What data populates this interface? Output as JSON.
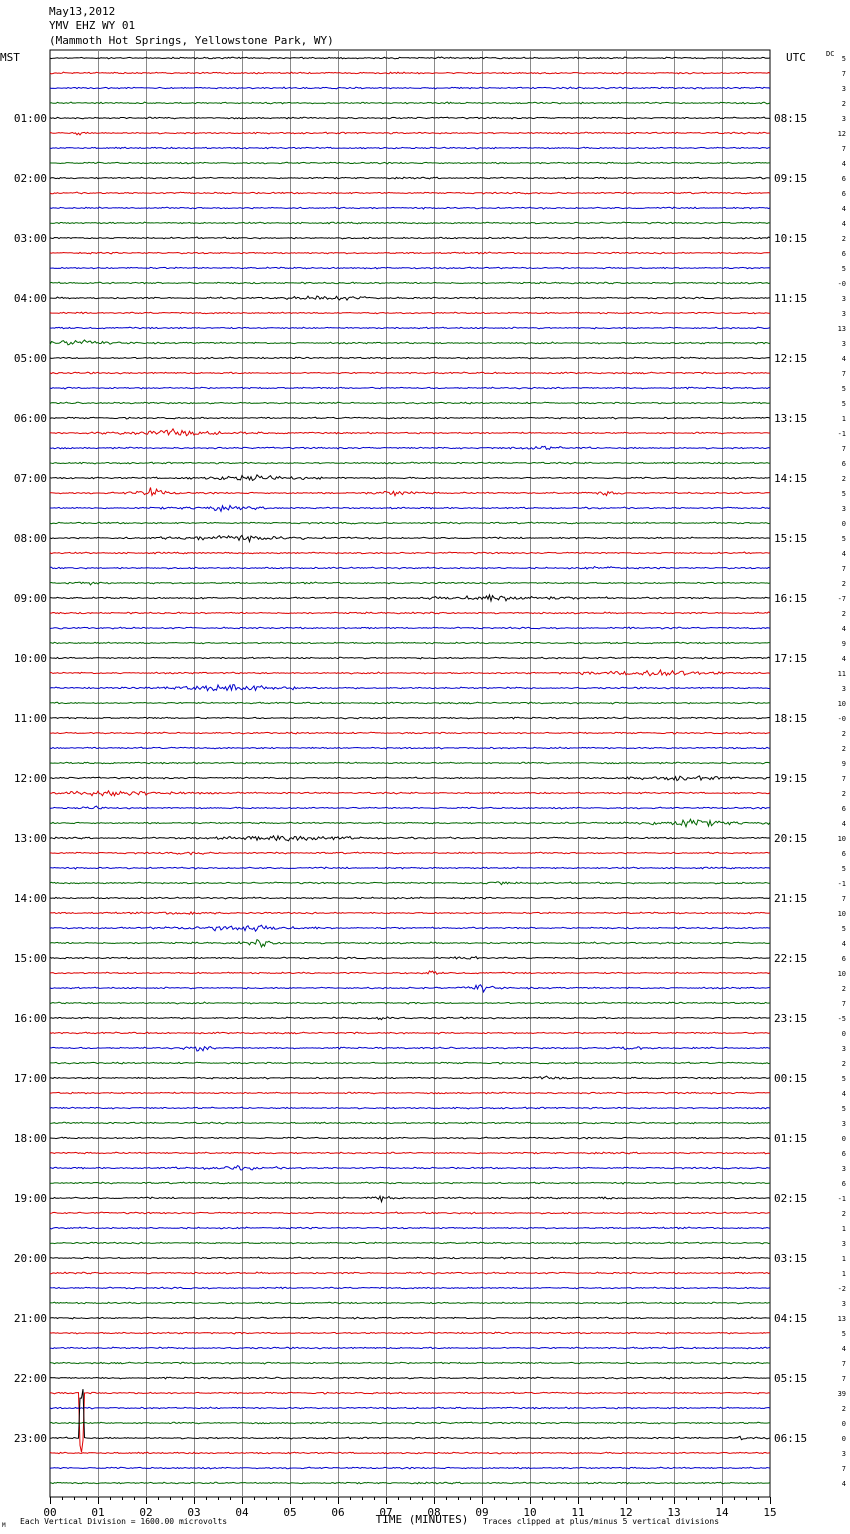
{
  "header": {
    "date": "May13,2012",
    "station": "YMV EHZ WY 01",
    "location": "(Mammoth Hot Springs, Yellowstone Park, WY)"
  },
  "left_axis_title": "MST",
  "right_axis_title": "UTC",
  "dc_title": "DC",
  "footer": {
    "scale_note": "Each Vertical Division = 1600.00 microvolts",
    "x_title": "TIME (MINUTES)",
    "clip_note": "Traces clipped at plus/minus 5 vertical divisions",
    "corner_mark": "M"
  },
  "chart_data": {
    "type": "line",
    "title": "",
    "xlabel": "TIME (MINUTES)",
    "xlim": [
      0,
      15
    ],
    "x_tick_labels": [
      "00",
      "01",
      "02",
      "03",
      "04",
      "05",
      "06",
      "07",
      "08",
      "09",
      "10",
      "11",
      "12",
      "13",
      "14",
      "15"
    ],
    "trace_colors": [
      "#000000",
      "#dd0000",
      "#0000cc",
      "#006600"
    ],
    "traces_per_hour": 4,
    "mst_labels": [
      "",
      "01:00",
      "02:00",
      "03:00",
      "04:00",
      "05:00",
      "06:00",
      "07:00",
      "08:00",
      "09:00",
      "10:00",
      "11:00",
      "12:00",
      "13:00",
      "14:00",
      "15:00",
      "16:00",
      "17:00",
      "18:00",
      "19:00",
      "20:00",
      "21:00",
      "22:00",
      "23:00"
    ],
    "utc_labels": [
      "",
      "08:15",
      "09:15",
      "10:15",
      "11:15",
      "12:15",
      "13:15",
      "14:15",
      "15:15",
      "16:15",
      "17:15",
      "18:15",
      "19:15",
      "20:15",
      "21:15",
      "22:15",
      "23:15",
      "00:15",
      "01:15",
      "02:15",
      "03:15",
      "04:15",
      "05:15",
      "06:15"
    ],
    "dc_values": [
      "5",
      "7",
      "3",
      "2",
      "3",
      "12",
      "7",
      "4",
      "6",
      "6",
      "4",
      "4",
      "2",
      "6",
      "5",
      "-0",
      "3",
      "3",
      "13",
      "3",
      "4",
      "7",
      "5",
      "5",
      "1",
      "-1",
      "7",
      "6",
      "2",
      "5",
      "3",
      "0",
      "5",
      "4",
      "7",
      "2",
      "-7",
      "2",
      "4",
      "9",
      "4",
      "11",
      "3",
      "10",
      "-0",
      "2",
      "2",
      "9",
      "7",
      "2",
      "6",
      "4",
      "10",
      "6",
      "5",
      "-1",
      "7",
      "10",
      "5",
      "4",
      "6",
      "10",
      "2",
      "7",
      "-5",
      "0",
      "3",
      "2",
      "5",
      "4",
      "5",
      "3",
      "0",
      "6",
      "3",
      "6",
      "-1",
      "2",
      "1",
      "3",
      "1",
      "1",
      "-2",
      "3",
      "13",
      "5",
      "4",
      "7",
      "7",
      "39",
      "2",
      "0",
      "0",
      "3",
      "7",
      "4"
    ],
    "events": [
      {
        "trace": 5,
        "minute": 0.6,
        "amp": 1.5,
        "dur": 0.15
      },
      {
        "trace": 16,
        "minute": 5.8,
        "amp": 1.3,
        "dur": 1.4
      },
      {
        "trace": 18,
        "minute": 15.0,
        "amp": 0.8,
        "dur": 0.3
      },
      {
        "trace": 19,
        "minute": 0.5,
        "amp": 1.3,
        "dur": 1.5
      },
      {
        "trace": 25,
        "minute": 2.5,
        "amp": 1.8,
        "dur": 2.0
      },
      {
        "trace": 26,
        "minute": 10.2,
        "amp": 0.8,
        "dur": 1.2
      },
      {
        "trace": 28,
        "minute": 4.2,
        "amp": 1.4,
        "dur": 2.0
      },
      {
        "trace": 29,
        "minute": 2.1,
        "amp": 3.0,
        "dur": 0.6
      },
      {
        "trace": 29,
        "minute": 7.2,
        "amp": 1.4,
        "dur": 0.8
      },
      {
        "trace": 29,
        "minute": 11.6,
        "amp": 1.0,
        "dur": 0.7
      },
      {
        "trace": 30,
        "minute": 3.5,
        "amp": 1.0,
        "dur": 1.5
      },
      {
        "trace": 32,
        "minute": 3.8,
        "amp": 1.4,
        "dur": 2.5
      },
      {
        "trace": 34,
        "minute": 11.6,
        "amp": 1.0,
        "dur": 0.5
      },
      {
        "trace": 35,
        "minute": 0.8,
        "amp": 0.9,
        "dur": 0.5
      },
      {
        "trace": 36,
        "minute": 9.3,
        "amp": 1.6,
        "dur": 2.5
      },
      {
        "trace": 38,
        "minute": 12.8,
        "amp": 0.9,
        "dur": 0.3
      },
      {
        "trace": 41,
        "minute": 12.6,
        "amp": 2.2,
        "dur": 2.0
      },
      {
        "trace": 42,
        "minute": 3.8,
        "amp": 2.0,
        "dur": 2.0
      },
      {
        "trace": 48,
        "minute": 13.2,
        "amp": 1.0,
        "dur": 2.0
      },
      {
        "trace": 49,
        "minute": 1.4,
        "amp": 1.9,
        "dur": 2.0
      },
      {
        "trace": 50,
        "minute": 0.9,
        "amp": 1.0,
        "dur": 0.4
      },
      {
        "trace": 51,
        "minute": 13.3,
        "amp": 2.0,
        "dur": 2.0
      },
      {
        "trace": 52,
        "minute": 5.0,
        "amp": 1.5,
        "dur": 2.5
      },
      {
        "trace": 53,
        "minute": 3.0,
        "amp": 0.8,
        "dur": 0.5
      },
      {
        "trace": 55,
        "minute": 9.4,
        "amp": 0.8,
        "dur": 0.8
      },
      {
        "trace": 57,
        "minute": 2.8,
        "amp": 0.8,
        "dur": 1.0
      },
      {
        "trace": 58,
        "minute": 4.0,
        "amp": 2.0,
        "dur": 2.0
      },
      {
        "trace": 59,
        "minute": 4.4,
        "amp": 1.6,
        "dur": 0.6
      },
      {
        "trace": 60,
        "minute": 8.8,
        "amp": 1.2,
        "dur": 0.4
      },
      {
        "trace": 61,
        "minute": 7.9,
        "amp": 1.3,
        "dur": 0.3
      },
      {
        "trace": 62,
        "minute": 9.0,
        "amp": 2.2,
        "dur": 0.5
      },
      {
        "trace": 64,
        "minute": 6.9,
        "amp": 1.2,
        "dur": 0.5
      },
      {
        "trace": 66,
        "minute": 3.1,
        "amp": 1.6,
        "dur": 0.5
      },
      {
        "trace": 66,
        "minute": 12.1,
        "amp": 1.2,
        "dur": 0.6
      },
      {
        "trace": 68,
        "minute": 10.3,
        "amp": 0.7,
        "dur": 0.8
      },
      {
        "trace": 74,
        "minute": 3.8,
        "amp": 0.9,
        "dur": 1.5
      },
      {
        "trace": 76,
        "minute": 6.9,
        "amp": 1.5,
        "dur": 0.5
      },
      {
        "trace": 76,
        "minute": 11.6,
        "amp": 0.9,
        "dur": 0.2
      },
      {
        "trace": 77,
        "minute": 8.8,
        "amp": 1.2,
        "dur": 0.1
      },
      {
        "trace": 89,
        "minute": 0.65,
        "amp": 5.0,
        "dur": 0.12,
        "clip": "down"
      },
      {
        "trace": 92,
        "minute": 0.65,
        "amp": 5.0,
        "dur": 0.12,
        "clip": "up"
      },
      {
        "trace": 92,
        "minute": 14.4,
        "amp": 1.4,
        "dur": 0.1
      }
    ]
  }
}
